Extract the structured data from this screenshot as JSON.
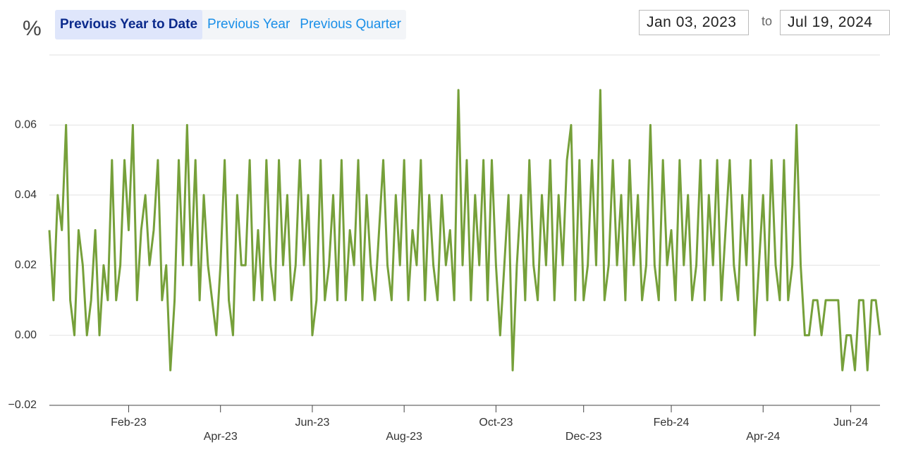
{
  "controls": {
    "unit": "%",
    "buttons": [
      "Previous Year to Date",
      "Previous Year",
      "Previous Quarter"
    ],
    "active": 0,
    "from": "Jan 03, 2023",
    "to_label": "to",
    "to": "Jul 19, 2024"
  },
  "chart_data": {
    "type": "line",
    "color": "#76a03a",
    "grid": true,
    "ylim": [
      -0.02,
      0.08
    ],
    "yticks": [
      {
        "value": -0.02,
        "label": "−0.02"
      },
      {
        "value": 0,
        "label": "0.00"
      },
      {
        "value": 0.02,
        "label": "0.02"
      },
      {
        "value": 0.04,
        "label": "0.04"
      },
      {
        "value": 0.06,
        "label": "0.06"
      }
    ],
    "categories": [
      null,
      null,
      null,
      null,
      null,
      null,
      null,
      null,
      null,
      null,
      null,
      null,
      null,
      null,
      null,
      null,
      null,
      null,
      null,
      "Feb-23",
      null,
      null,
      null,
      null,
      null,
      null,
      null,
      null,
      null,
      null,
      null,
      null,
      null,
      null,
      null,
      null,
      null,
      null,
      null,
      null,
      null,
      "Apr-23",
      null,
      null,
      null,
      null,
      null,
      null,
      null,
      null,
      null,
      null,
      null,
      null,
      null,
      null,
      null,
      null,
      null,
      null,
      null,
      null,
      null,
      "Jun-23",
      null,
      null,
      null,
      null,
      null,
      null,
      null,
      null,
      null,
      null,
      null,
      null,
      null,
      null,
      null,
      null,
      null,
      null,
      null,
      null,
      null,
      "Aug-23",
      null,
      null,
      null,
      null,
      null,
      null,
      null,
      null,
      null,
      null,
      null,
      null,
      null,
      null,
      null,
      null,
      null,
      null,
      null,
      null,
      null,
      "Oct-23",
      null,
      null,
      null,
      null,
      null,
      null,
      null,
      null,
      null,
      null,
      null,
      null,
      null,
      null,
      null,
      null,
      null,
      null,
      null,
      null,
      "Dec-23",
      null,
      null,
      null,
      null,
      null,
      null,
      null,
      null,
      null,
      null,
      null,
      null,
      null,
      null,
      null,
      null,
      null,
      null,
      null,
      null,
      "Feb-24",
      null,
      null,
      null,
      null,
      null,
      null,
      null,
      null,
      null,
      null,
      null,
      null,
      null,
      null,
      null,
      null,
      null,
      null,
      null,
      null,
      null,
      "Apr-24",
      null,
      null,
      null,
      null,
      null,
      null,
      null,
      null,
      null,
      null,
      null,
      null,
      null,
      null,
      null,
      null,
      null,
      null,
      null,
      null,
      "Jun-24",
      null,
      null,
      null,
      null,
      null,
      null,
      null
    ],
    "values": [
      0.03,
      0.01,
      0.04,
      0.03,
      0.06,
      0.01,
      0,
      0.03,
      0.02,
      0,
      0.01,
      0.03,
      0,
      0.02,
      0.01,
      0.05,
      0.01,
      0.02,
      0.05,
      0.03,
      0.06,
      0.01,
      0.03,
      0.04,
      0.02,
      0.03,
      0.05,
      0.01,
      0.02,
      -0.01,
      0.01,
      0.05,
      0.02,
      0.06,
      0.02,
      0.05,
      0.01,
      0.04,
      0.02,
      0.01,
      0,
      0.02,
      0.05,
      0.01,
      0,
      0.04,
      0.02,
      0.02,
      0.05,
      0.01,
      0.03,
      0.01,
      0.05,
      0.02,
      0.01,
      0.05,
      0.02,
      0.04,
      0.01,
      0.02,
      0.05,
      0.02,
      0.04,
      0,
      0.01,
      0.05,
      0.01,
      0.02,
      0.04,
      0.01,
      0.05,
      0.01,
      0.03,
      0.02,
      0.05,
      0.01,
      0.04,
      0.02,
      0.01,
      0.03,
      0.05,
      0.02,
      0.01,
      0.04,
      0.02,
      0.05,
      0.01,
      0.03,
      0.02,
      0.05,
      0.01,
      0.04,
      0.02,
      0.01,
      0.04,
      0.02,
      0.03,
      0.01,
      0.07,
      0.02,
      0.05,
      0.01,
      0.04,
      0.02,
      0.05,
      0.01,
      0.05,
      0.02,
      0,
      0.02,
      0.04,
      -0.01,
      0.02,
      0.04,
      0.01,
      0.05,
      0.02,
      0.01,
      0.04,
      0.02,
      0.05,
      0.01,
      0.04,
      0.02,
      0.05,
      0.06,
      0.01,
      0.05,
      0.01,
      0.02,
      0.05,
      0.02,
      0.07,
      0.01,
      0.02,
      0.05,
      0.02,
      0.04,
      0.01,
      0.05,
      0.02,
      0.04,
      0.01,
      0.02,
      0.06,
      0.02,
      0.01,
      0.05,
      0.02,
      0.03,
      0.01,
      0.05,
      0.02,
      0.04,
      0.01,
      0.02,
      0.05,
      0.01,
      0.04,
      0.02,
      0.05,
      0.01,
      0.03,
      0.05,
      0.02,
      0.01,
      0.04,
      0.02,
      0.05,
      0,
      0.02,
      0.04,
      0.01,
      0.05,
      0.02,
      0.01,
      0.05,
      0.01,
      0.02,
      0.06,
      0.02,
      0,
      0,
      0.01,
      0.01,
      0,
      0.01,
      0.01,
      0.01,
      0.01,
      -0.01,
      0,
      0,
      -0.01,
      0.01,
      0.01,
      -0.01,
      0.01,
      0.01,
      0
    ]
  }
}
